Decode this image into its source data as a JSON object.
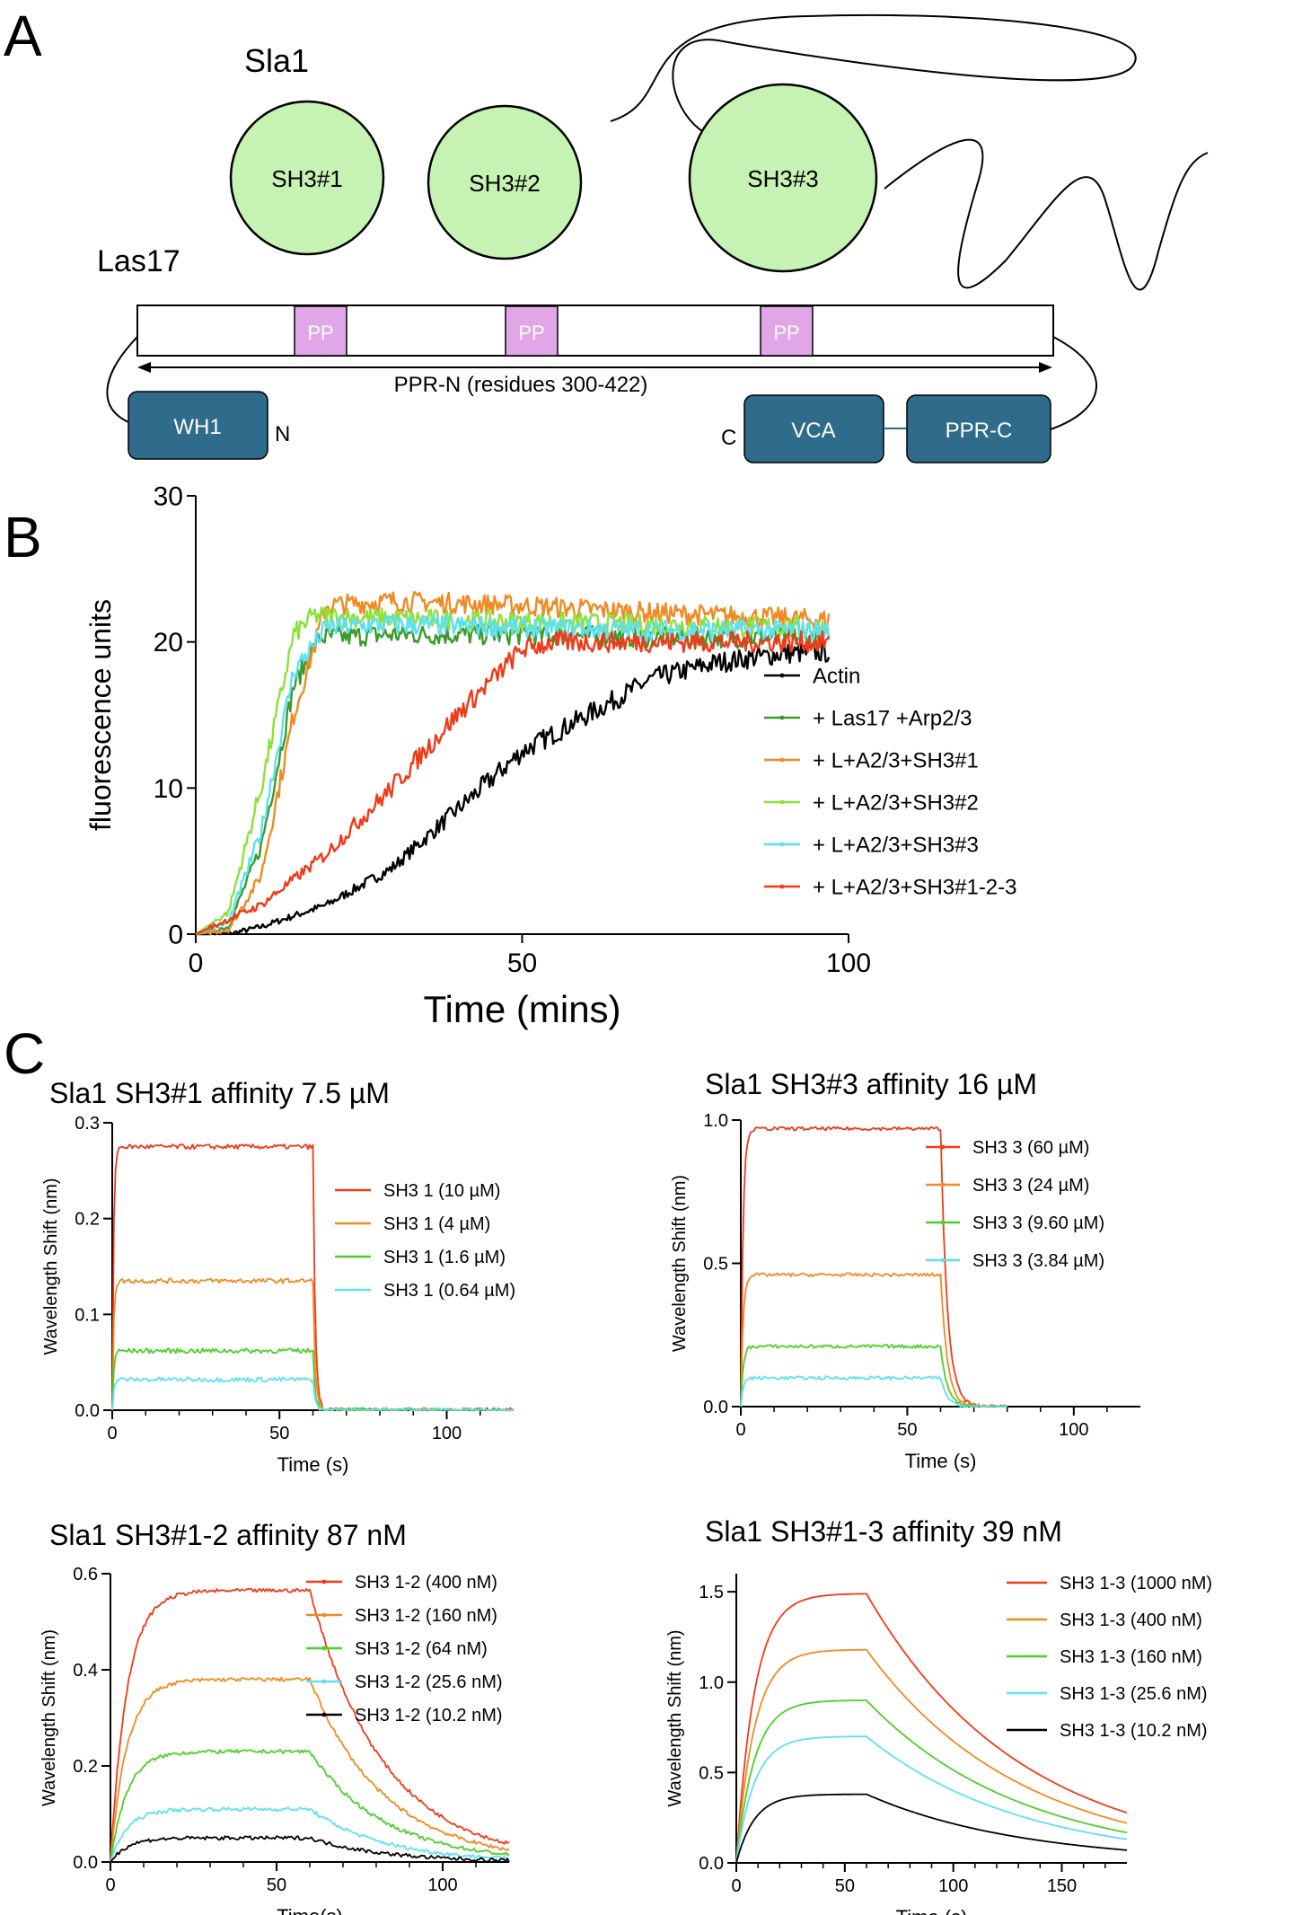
{
  "panel_labels": [
    "A",
    "B",
    "C"
  ],
  "panel_a": {
    "protein1": "Sla1",
    "protein2": "Las17",
    "domains": [
      "SH3#1",
      "SH3#2",
      "SH3#3"
    ],
    "pp_label": "PP",
    "ppr_n_label": "PPR-N (residues 300-422)",
    "wh1": "WH1",
    "n_term": "N",
    "c_term": "C",
    "vca": "VCA",
    "ppr_c": "PPR-C"
  },
  "colors": {
    "domain_fill": "#c6f2b3",
    "pp_fill": "#e0a6e8",
    "box_fill": "#2f6b8a",
    "black": "#000000",
    "dark_green": "#3a9a2a",
    "orange": "#f08a24",
    "light_green": "#8ee03a",
    "cyan": "#5fe0f0",
    "red": "#f03a1a",
    "bright_green": "#4ccf2a"
  },
  "chart_data": [
    {
      "id": "B",
      "type": "line",
      "xlabel": "Time (mins)",
      "ylabel": "fluorescence units",
      "xlim": [
        0,
        100
      ],
      "ylim": [
        0,
        30
      ],
      "xticks": [
        0,
        50,
        100
      ],
      "yticks": [
        0,
        10,
        20,
        30
      ],
      "legend_position": "right",
      "series": [
        {
          "name": "Actin",
          "color": "#000000",
          "model": "lag",
          "x": [
            0,
            5,
            10,
            20,
            30,
            40,
            50,
            60,
            70,
            80,
            90,
            97
          ],
          "values": [
            0,
            0,
            0.5,
            2,
            4.5,
            8.5,
            12.5,
            15,
            17.5,
            18.6,
            19.2,
            19.3
          ]
        },
        {
          "name": "+ Las17 +Arp2/3",
          "color": "#3a9a2a",
          "model": "sigmoid",
          "x": [
            0,
            5,
            10,
            15,
            19,
            30,
            50,
            70,
            97
          ],
          "values": [
            0,
            0.5,
            6,
            17,
            20.3,
            20.5,
            20.5,
            20.3,
            20.3
          ]
        },
        {
          "name": "+ L+A2/3+SH3#1",
          "color": "#f08a24",
          "model": "sigmoid",
          "x": [
            0,
            5,
            10,
            15,
            20,
            30,
            50,
            70,
            97
          ],
          "values": [
            0,
            0.3,
            4,
            15,
            22.5,
            22.8,
            22.5,
            22,
            21.5
          ]
        },
        {
          "name": "+ L+A2/3+SH3#2",
          "color": "#8ee03a",
          "model": "sigmoid",
          "x": [
            0,
            5,
            10,
            15,
            18,
            30,
            50,
            70,
            97
          ],
          "values": [
            0,
            1.5,
            10,
            20.5,
            21.8,
            21.6,
            21.4,
            21.2,
            21
          ]
        },
        {
          "name": "+ L+A2/3+SH3#3",
          "color": "#5fe0f0",
          "model": "sigmoid",
          "x": [
            0,
            5,
            10,
            15,
            20,
            30,
            50,
            70,
            97
          ],
          "values": [
            0,
            0.8,
            7,
            18,
            21,
            21.2,
            21,
            20.8,
            20.8
          ]
        },
        {
          "name": "+ L+A2/3+SH3#1-2-3",
          "color": "#f03a1a",
          "model": "lag",
          "x": [
            0,
            10,
            20,
            30,
            40,
            50,
            55,
            60,
            70,
            80,
            90,
            97
          ],
          "values": [
            0,
            2,
            5.5,
            10,
            15,
            19.5,
            20,
            20,
            20,
            20,
            20,
            20
          ]
        }
      ]
    },
    {
      "id": "C1",
      "type": "line",
      "title": "Sla1 SH3#1 affinity  7.5 µM",
      "xlabel": "Time (s)",
      "ylabel": "Wavelength Shift (nm)",
      "xlim": [
        0,
        120
      ],
      "ylim": [
        0,
        0.3
      ],
      "xticks": [
        0,
        50,
        100
      ],
      "ytick_labels": [
        "0.0",
        "0.1",
        "0.2",
        "0.3"
      ],
      "legend_position": "right",
      "kinetics": {
        "assoc_end": 60,
        "k_on": 2.5,
        "k_off": 1.5,
        "x_end": 120
      },
      "series": [
        {
          "name": "SH3 1 (10 µM)",
          "color": "#f03a1a",
          "plateau": 0.275
        },
        {
          "name": "SH3 1 (4 µM)",
          "color": "#f08a24",
          "plateau": 0.135
        },
        {
          "name": "SH3 1 (1.6 µM)",
          "color": "#4ccf2a",
          "plateau": 0.062
        },
        {
          "name": "SH3 1 (0.64 µM)",
          "color": "#5fe0f0",
          "plateau": 0.032
        }
      ]
    },
    {
      "id": "C2",
      "type": "line",
      "title": "Sla1 SH3#3 affinity  16 µM",
      "xlabel": "Time (s)",
      "ylabel": "Wavelength Shift (nm)",
      "xlim": [
        0,
        120
      ],
      "ylim": [
        0,
        1.0
      ],
      "xticks": [
        0,
        50,
        100
      ],
      "ytick_labels": [
        "0.0",
        "0.5",
        "1.0"
      ],
      "legend_position": "right",
      "kinetics": {
        "assoc_end": 60,
        "k_on": 1.5,
        "k_off": 0.5,
        "x_end": 80
      },
      "series": [
        {
          "name": "SH3 3 (60 µM)",
          "color": "#f03a1a",
          "plateau": 0.97
        },
        {
          "name": "SH3 3 (24 µM)",
          "color": "#f08a24",
          "plateau": 0.46
        },
        {
          "name": "SH3 3 (9.60 µM)",
          "color": "#4ccf2a",
          "plateau": 0.21
        },
        {
          "name": "SH3 3 (3.84 µM)",
          "color": "#5fe0f0",
          "plateau": 0.1
        }
      ]
    },
    {
      "id": "C3",
      "type": "line",
      "title": "Sla1 SH3#1-2 affinity  87 nM",
      "xlabel": "Time(s)",
      "ylabel": "Wavelength Shift (nm)",
      "xlim": [
        0,
        120
      ],
      "ylim": [
        0,
        0.6
      ],
      "xticks": [
        0,
        50,
        100
      ],
      "ytick_labels": [
        "0.0",
        "0.2",
        "0.4",
        "0.6"
      ],
      "legend_position": "right",
      "kinetics": {
        "assoc_end": 60,
        "k_on": 0.2,
        "k_off": 0.045,
        "x_end": 120
      },
      "series": [
        {
          "name": "SH3 1-2 (400 nM)",
          "color": "#f03a1a",
          "plateau": 0.565
        },
        {
          "name": "SH3 1-2 (160 nM)",
          "color": "#f08a24",
          "plateau": 0.38
        },
        {
          "name": "SH3 1-2 (64 nM)",
          "color": "#4ccf2a",
          "plateau": 0.23
        },
        {
          "name": "SH3 1-2 (25.6 nM)",
          "color": "#5fe0f0",
          "plateau": 0.11
        },
        {
          "name": "SH3 1-2 (10.2 nM)",
          "color": "#000000",
          "plateau": 0.05
        }
      ]
    },
    {
      "id": "C4",
      "type": "line",
      "title": "Sla1 SH3#1-3 affinity   39 nM",
      "xlabel": "Time (s)",
      "ylabel": "Wavelength Shift (nm)",
      "xlim": [
        0,
        180
      ],
      "ylim": [
        0,
        1.6
      ],
      "xticks": [
        0,
        50,
        100,
        150
      ],
      "ytick_labels": [
        "0.0",
        "0.5",
        "1.0",
        "1.5"
      ],
      "legend_position": "right",
      "kinetics": {
        "assoc_end": 60,
        "k_on": 0.12,
        "k_off": 0.014,
        "x_end": 180
      },
      "series": [
        {
          "name": "SH3 1-3 (1000 nM)",
          "color": "#f03a1a",
          "plateau": 1.49
        },
        {
          "name": "SH3 1-3 (400 nM)",
          "color": "#f08a24",
          "plateau": 1.18
        },
        {
          "name": "SH3 1-3 (160 nM)",
          "color": "#4ccf2a",
          "plateau": 0.9
        },
        {
          "name": "SH3 1-3 (25.6 nM)",
          "color": "#5fe0f0",
          "plateau": 0.7
        },
        {
          "name": "SH3 1-3 (10.2 nM)",
          "color": "#000000",
          "plateau": 0.38
        }
      ]
    }
  ]
}
